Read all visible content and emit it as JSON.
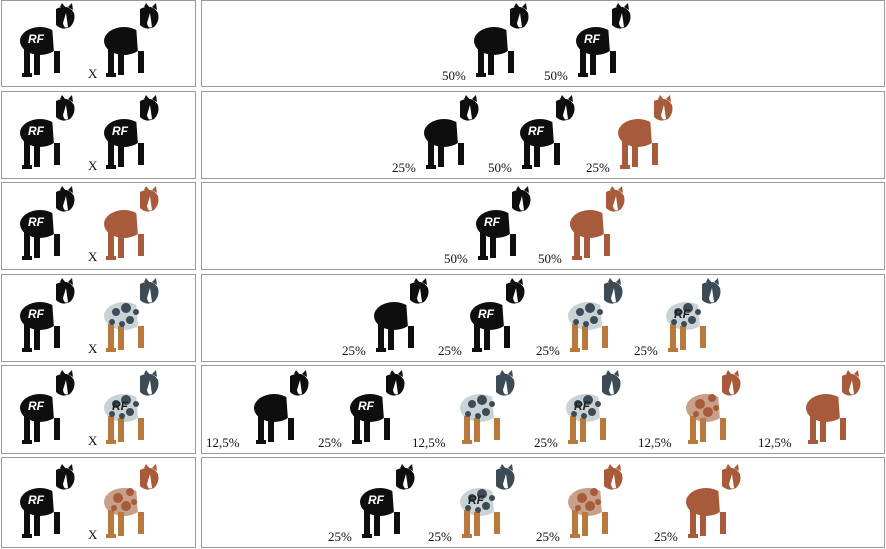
{
  "colors": {
    "black_tri": "#0e0e0e",
    "white": "#ffffff",
    "red_merle_base": "#a85b3b",
    "red_merle_spot": "#c8a089",
    "blue_merle_base": "#c9d3d6",
    "blue_merle_spot": "#3d4b57",
    "tan": "#b87a3c",
    "border": "#9a9a9a"
  },
  "rows": [
    {
      "parents": [
        {
          "type": "black_tri",
          "rf": "RF"
        },
        {
          "type": "black_tri",
          "rf": ""
        }
      ],
      "cross": "X",
      "offspring": [
        {
          "type": "black_tri",
          "rf": "",
          "pct": "50%"
        },
        {
          "type": "black_tri",
          "rf": "RF",
          "pct": "50%"
        }
      ]
    },
    {
      "parents": [
        {
          "type": "black_tri",
          "rf": "RF"
        },
        {
          "type": "black_tri",
          "rf": "RF"
        }
      ],
      "cross": "X",
      "offspring": [
        {
          "type": "black_tri",
          "rf": "",
          "pct": "25%"
        },
        {
          "type": "black_tri",
          "rf": "RF",
          "pct": "50%"
        },
        {
          "type": "red_tri",
          "rf": "",
          "pct": "25%"
        }
      ]
    },
    {
      "parents": [
        {
          "type": "black_tri",
          "rf": "RF"
        },
        {
          "type": "red_tri",
          "rf": ""
        }
      ],
      "cross": "X",
      "offspring": [
        {
          "type": "black_tri",
          "rf": "RF",
          "pct": "50%"
        },
        {
          "type": "red_tri",
          "rf": "",
          "pct": "50%"
        }
      ]
    },
    {
      "parents": [
        {
          "type": "black_tri",
          "rf": "RF"
        },
        {
          "type": "blue_merle",
          "rf": ""
        }
      ],
      "cross": "X",
      "offspring": [
        {
          "type": "black_tri",
          "rf": "",
          "pct": "25%"
        },
        {
          "type": "black_tri",
          "rf": "RF",
          "pct": "25%"
        },
        {
          "type": "blue_merle",
          "rf": "",
          "pct": "25%"
        },
        {
          "type": "blue_merle",
          "rf": "RF",
          "pct": "25%"
        }
      ]
    },
    {
      "parents": [
        {
          "type": "black_tri",
          "rf": "RF"
        },
        {
          "type": "blue_merle",
          "rf": "RF"
        }
      ],
      "cross": "X",
      "offspring": [
        {
          "type": "black_tri",
          "rf": "",
          "pct": "12,5%"
        },
        {
          "type": "black_tri",
          "rf": "RF",
          "pct": "25%"
        },
        {
          "type": "blue_merle",
          "rf": "",
          "pct": "12,5%"
        },
        {
          "type": "blue_merle",
          "rf": "RF",
          "pct": "25%"
        },
        {
          "type": "red_merle",
          "rf": "",
          "pct": "12,5%"
        },
        {
          "type": "red_tri",
          "rf": "",
          "pct": "12,5%"
        }
      ]
    },
    {
      "parents": [
        {
          "type": "black_tri",
          "rf": "RF"
        },
        {
          "type": "red_merle",
          "rf": ""
        }
      ],
      "cross": "X",
      "offspring": [
        {
          "type": "black_tri",
          "rf": "RF",
          "pct": "25%"
        },
        {
          "type": "blue_merle",
          "rf": "RF",
          "pct": "25%"
        },
        {
          "type": "red_merle",
          "rf": "",
          "pct": "25%"
        },
        {
          "type": "red_tri",
          "rf": "",
          "pct": "25%"
        }
      ]
    }
  ]
}
